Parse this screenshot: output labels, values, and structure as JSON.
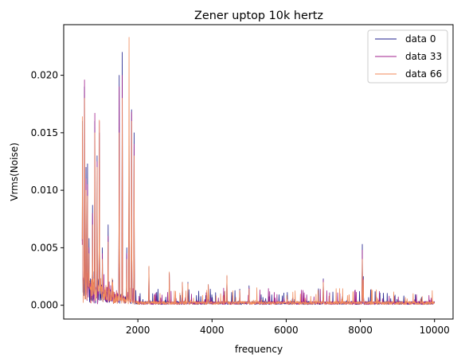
{
  "chart_data": {
    "type": "line",
    "title": "Zener uptop 10k hertz",
    "xlabel": "frequency",
    "ylabel": "Vrms(Noise)",
    "xlim": [
      0,
      10500
    ],
    "ylim": [
      -0.0012,
      0.0244
    ],
    "xticks": [
      2000,
      4000,
      6000,
      8000,
      10000
    ],
    "xtick_labels": [
      "2000",
      "4000",
      "6000",
      "8000",
      "10000"
    ],
    "yticks": [
      0.0,
      0.005,
      0.01,
      0.015,
      0.02
    ],
    "ytick_labels": [
      "0.000",
      "0.005",
      "0.010",
      "0.015",
      "0.020"
    ],
    "grid": false,
    "legend_position": "top-right",
    "x_range": [
      500,
      10000
    ],
    "baseline_vrms": 0.0002,
    "series": [
      {
        "name": "data 0",
        "color": "#1f1f8c",
        "peaks": [
          {
            "x": 510,
            "y": 0.016
          },
          {
            "x": 560,
            "y": 0.019
          },
          {
            "x": 600,
            "y": 0.012
          },
          {
            "x": 640,
            "y": 0.0123
          },
          {
            "x": 680,
            "y": 0.0058
          },
          {
            "x": 780,
            "y": 0.0087
          },
          {
            "x": 840,
            "y": 0.016
          },
          {
            "x": 900,
            "y": 0.013
          },
          {
            "x": 960,
            "y": 0.015
          },
          {
            "x": 1040,
            "y": 0.005
          },
          {
            "x": 1200,
            "y": 0.007
          },
          {
            "x": 1320,
            "y": 0.0022
          },
          {
            "x": 1500,
            "y": 0.02
          },
          {
            "x": 1580,
            "y": 0.022
          },
          {
            "x": 1700,
            "y": 0.005
          },
          {
            "x": 1760,
            "y": 0.016
          },
          {
            "x": 1830,
            "y": 0.017
          },
          {
            "x": 1900,
            "y": 0.015
          },
          {
            "x": 2300,
            "y": 0.0033
          },
          {
            "x": 2850,
            "y": 0.0028
          },
          {
            "x": 3200,
            "y": 0.002
          },
          {
            "x": 3350,
            "y": 0.002
          },
          {
            "x": 3900,
            "y": 0.0018
          },
          {
            "x": 4400,
            "y": 0.0025
          },
          {
            "x": 4750,
            "y": 0.0014
          },
          {
            "x": 5000,
            "y": 0.0017
          },
          {
            "x": 7000,
            "y": 0.0023
          },
          {
            "x": 8050,
            "y": 0.0053
          },
          {
            "x": 8080,
            "y": 0.0025
          }
        ]
      },
      {
        "name": "data 33",
        "color": "#a0208c",
        "peaks": [
          {
            "x": 510,
            "y": 0.015
          },
          {
            "x": 560,
            "y": 0.0196
          },
          {
            "x": 600,
            "y": 0.011
          },
          {
            "x": 640,
            "y": 0.0105
          },
          {
            "x": 680,
            "y": 0.005
          },
          {
            "x": 780,
            "y": 0.008
          },
          {
            "x": 840,
            "y": 0.0167
          },
          {
            "x": 900,
            "y": 0.0125
          },
          {
            "x": 960,
            "y": 0.016
          },
          {
            "x": 1040,
            "y": 0.0045
          },
          {
            "x": 1200,
            "y": 0.006
          },
          {
            "x": 1320,
            "y": 0.002
          },
          {
            "x": 1500,
            "y": 0.019
          },
          {
            "x": 1580,
            "y": 0.02
          },
          {
            "x": 1700,
            "y": 0.0045
          },
          {
            "x": 1760,
            "y": 0.015
          },
          {
            "x": 1830,
            "y": 0.0168
          },
          {
            "x": 1900,
            "y": 0.014
          },
          {
            "x": 2300,
            "y": 0.003
          },
          {
            "x": 2850,
            "y": 0.0027
          },
          {
            "x": 3200,
            "y": 0.0019
          },
          {
            "x": 3350,
            "y": 0.0018
          },
          {
            "x": 3900,
            "y": 0.0017
          },
          {
            "x": 4400,
            "y": 0.0024
          },
          {
            "x": 4750,
            "y": 0.0013
          },
          {
            "x": 5000,
            "y": 0.0015
          },
          {
            "x": 7000,
            "y": 0.0022
          },
          {
            "x": 8050,
            "y": 0.0048
          },
          {
            "x": 8080,
            "y": 0.0023
          }
        ]
      },
      {
        "name": "data 66",
        "color": "#f08a5a",
        "peaks": [
          {
            "x": 510,
            "y": 0.0164
          },
          {
            "x": 560,
            "y": 0.018
          },
          {
            "x": 600,
            "y": 0.01
          },
          {
            "x": 640,
            "y": 0.0095
          },
          {
            "x": 680,
            "y": 0.0045
          },
          {
            "x": 780,
            "y": 0.007
          },
          {
            "x": 840,
            "y": 0.015
          },
          {
            "x": 900,
            "y": 0.012
          },
          {
            "x": 960,
            "y": 0.0161
          },
          {
            "x": 1040,
            "y": 0.004
          },
          {
            "x": 1200,
            "y": 0.0055
          },
          {
            "x": 1320,
            "y": 0.002
          },
          {
            "x": 1500,
            "y": 0.015
          },
          {
            "x": 1580,
            "y": 0.018
          },
          {
            "x": 1700,
            "y": 0.004
          },
          {
            "x": 1760,
            "y": 0.0233
          },
          {
            "x": 1830,
            "y": 0.016
          },
          {
            "x": 1900,
            "y": 0.013
          },
          {
            "x": 2300,
            "y": 0.0034
          },
          {
            "x": 2850,
            "y": 0.0029
          },
          {
            "x": 3200,
            "y": 0.002
          },
          {
            "x": 3350,
            "y": 0.0019
          },
          {
            "x": 3900,
            "y": 0.0018
          },
          {
            "x": 4400,
            "y": 0.0026
          },
          {
            "x": 4750,
            "y": 0.0013
          },
          {
            "x": 5000,
            "y": 0.0014
          },
          {
            "x": 7000,
            "y": 0.002
          },
          {
            "x": 8050,
            "y": 0.004
          },
          {
            "x": 8080,
            "y": 0.0022
          }
        ]
      }
    ]
  }
}
